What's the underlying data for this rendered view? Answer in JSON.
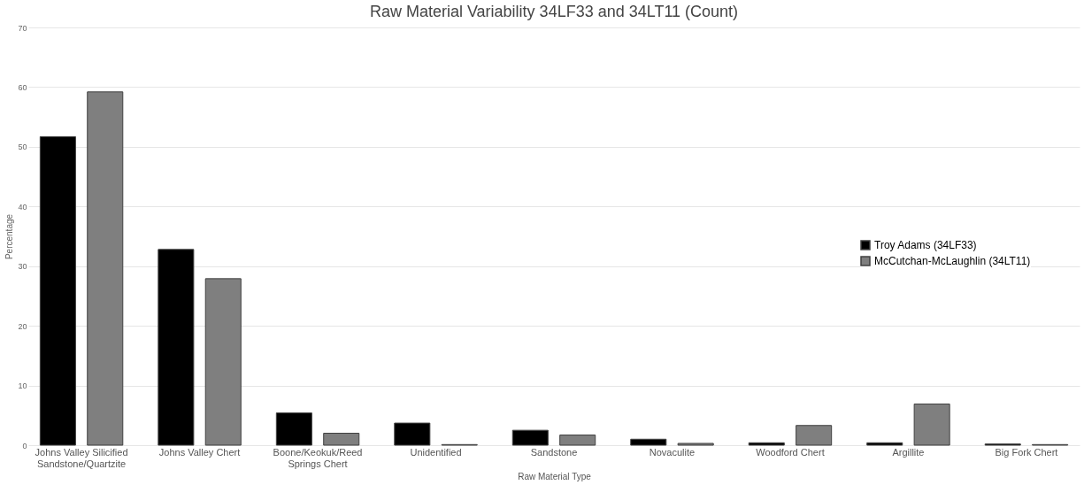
{
  "chart_data": {
    "type": "bar",
    "title": "Raw Material Variability 34LF33 and 34LT11 (Count)",
    "xlabel": "Raw Material Type",
    "ylabel": "Percentage",
    "categories": [
      "Johns Valley Silicified Sandstone/Quartzite",
      "Johns Valley Chert",
      "Boone/Keokuk/Reed Springs Chert",
      "Unidentified",
      "Sandstone",
      "Novaculite",
      "Woodford Chert",
      "Argillite",
      "Big Fork Chert"
    ],
    "series": [
      {
        "name": "Troy Adams (34LF33)",
        "color": "#000000",
        "values": [
          51.7,
          32.8,
          5.4,
          3.7,
          2.5,
          1.0,
          0.4,
          0.4,
          0.2
        ]
      },
      {
        "name": "McCutchan-McLaughlin (34LT11)",
        "color": "#7f7f7f",
        "values": [
          59.2,
          27.9,
          2.0,
          0.1,
          1.7,
          0.3,
          3.3,
          6.9,
          0.1
        ]
      }
    ],
    "ylim": [
      0,
      70
    ],
    "yticks": [
      0,
      10,
      20,
      30,
      40,
      50,
      60,
      70
    ],
    "grid": "y",
    "legend": "right"
  }
}
